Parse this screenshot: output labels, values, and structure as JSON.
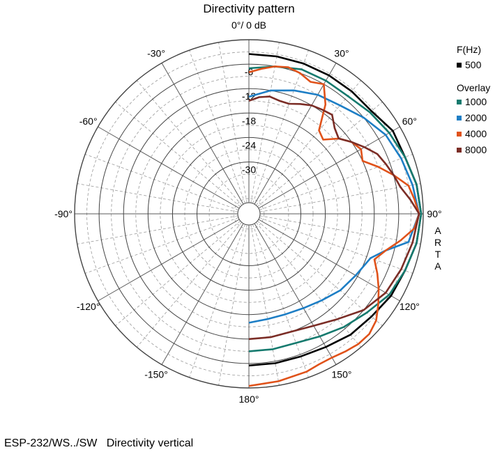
{
  "chart_data": {
    "type": "polar",
    "title": "Directivity pattern",
    "radial_unit": "dB",
    "radial_ticks": [
      0,
      -6,
      -12,
      -18,
      -24,
      -30
    ],
    "radial_labels": [
      "-6",
      "-12",
      "-18",
      "-24",
      "-30"
    ],
    "radial_min": -40,
    "radial_max": 0,
    "angle_ticks": [
      0,
      30,
      60,
      90,
      120,
      150,
      180,
      -150,
      -120,
      -90,
      -60,
      -30
    ],
    "angle_labels": [
      "0°/ 0 dB",
      "30°",
      "60°",
      "90°",
      "120°",
      "150°",
      "180°",
      "-150°",
      "-120°",
      "-90°",
      "-60°",
      "-30°"
    ],
    "legend_title": "F(Hz)",
    "legend_overlay_label": "Overlay",
    "side_mark": "ARTA",
    "grid": true,
    "series": [
      {
        "name": "500",
        "color": "#000000",
        "angles": [
          0,
          10,
          20,
          30,
          40,
          50,
          60,
          70,
          80,
          90,
          100,
          110,
          120,
          130,
          140,
          150,
          160,
          170,
          180
        ],
        "values": [
          -3.5,
          -3.5,
          -3.5,
          -3.5,
          -3.5,
          -3.5,
          -2,
          -2,
          -1,
          -0.5,
          -1,
          -2,
          -2.5,
          -3.5,
          -4,
          -5,
          -5.5,
          -5.5,
          -5.5
        ]
      },
      {
        "name": "1000",
        "color": "#157a6e",
        "angles": [
          0,
          10,
          20,
          30,
          40,
          50,
          60,
          70,
          80,
          90,
          100,
          110,
          120,
          130,
          140,
          150,
          160,
          170,
          180
        ],
        "values": [
          -7,
          -6,
          -5,
          -5,
          -5,
          -4,
          -3,
          -2,
          -1,
          -0.5,
          -1,
          -2,
          -3,
          -5,
          -6.5,
          -8,
          -9,
          -9,
          -9
        ]
      },
      {
        "name": "2000",
        "color": "#1d7ec5",
        "angles": [
          0,
          10,
          20,
          30,
          40,
          50,
          60,
          70,
          80,
          90,
          100,
          105,
          110,
          120,
          130,
          140,
          150,
          160,
          170,
          180
        ],
        "values": [
          -14,
          -12,
          -10.5,
          -9,
          -8,
          -6,
          -4,
          -3,
          -2,
          -1,
          -3,
          -8,
          -11,
          -12.5,
          -13.5,
          -15,
          -16,
          -16.5,
          -16.5,
          -16
        ]
      },
      {
        "name": "4000",
        "color": "#e0521a",
        "angles": [
          0,
          5,
          10,
          15,
          20,
          25,
          30,
          35,
          40,
          45,
          50,
          55,
          60,
          65,
          70,
          75,
          80,
          85,
          90,
          95,
          100,
          105,
          110,
          115,
          120,
          125,
          130,
          135,
          140,
          145,
          150,
          155,
          160,
          170,
          180
        ],
        "values": [
          -8,
          -7,
          -6,
          -5.5,
          -6,
          -7,
          -6,
          -10,
          -16,
          -17,
          -14,
          -12,
          -11,
          -12,
          -9,
          -6,
          -3,
          -2,
          -1,
          -2,
          -5,
          -8,
          -10,
          -8,
          -6,
          -4,
          -2,
          -1,
          -1,
          -1.5,
          -2,
          -2,
          -1.5,
          -1,
          -0.5
        ]
      },
      {
        "name": "8000",
        "color": "#7b2d26",
        "angles": [
          0,
          5,
          10,
          15,
          20,
          25,
          30,
          35,
          40,
          45,
          50,
          55,
          60,
          65,
          70,
          75,
          80,
          85,
          90,
          100,
          110,
          120,
          130,
          140,
          150,
          160,
          170,
          180
        ],
        "values": [
          -15,
          -14,
          -13.5,
          -14,
          -14,
          -13,
          -12,
          -11.5,
          -11,
          -13,
          -14,
          -12,
          -10,
          -8,
          -7,
          -6,
          -5,
          -3,
          -1,
          -2,
          -3,
          -4,
          -6,
          -9,
          -11,
          -12,
          -12,
          -12
        ]
      }
    ]
  },
  "footer": {
    "model": "ESP-232/WS../SW",
    "description": "Directivity vertical"
  }
}
